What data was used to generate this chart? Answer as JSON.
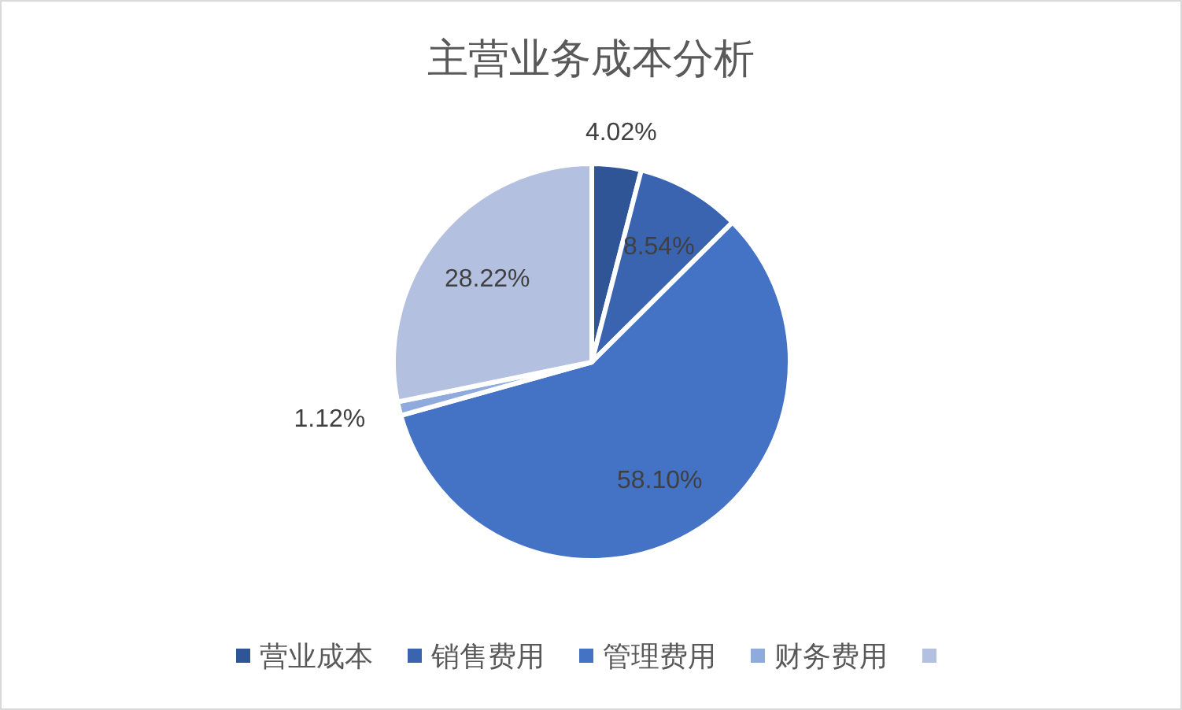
{
  "chart_data": {
    "type": "pie",
    "title": "主营业务成本分析",
    "categories": [
      "营业成本",
      "销售费用",
      "管理费用",
      "财务费用",
      null
    ],
    "values": [
      4.02,
      8.54,
      58.1,
      1.12,
      28.22
    ],
    "value_labels": [
      "4.02%",
      "8.54%",
      "58.10%",
      "1.12%",
      "28.22%"
    ],
    "colors": [
      "#2f5597",
      "#3a63b0",
      "#4472c4",
      "#8faadc",
      "#b4c0e0"
    ],
    "legend": "bottom"
  }
}
